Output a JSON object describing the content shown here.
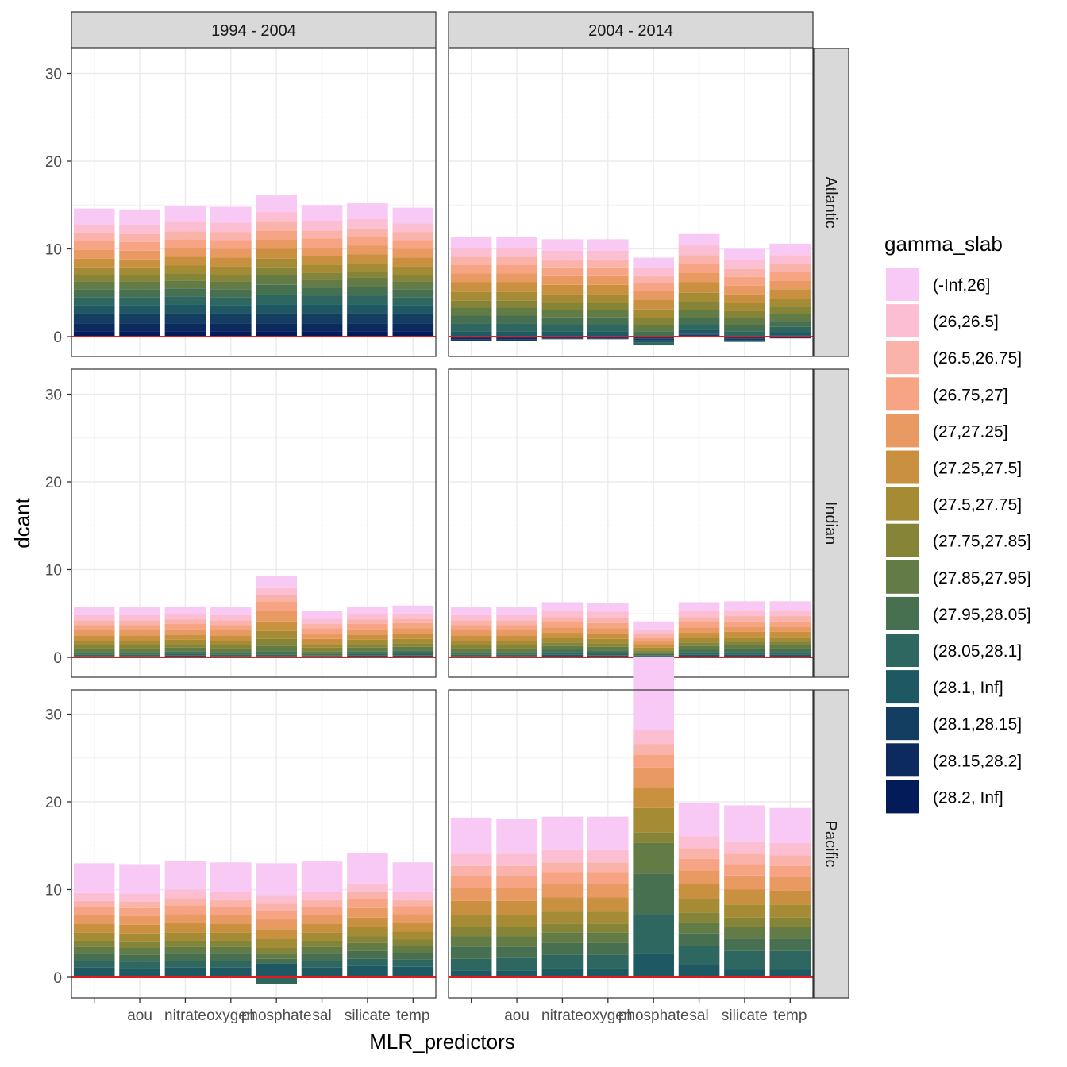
{
  "chart_data": {
    "type": "bar",
    "stacked": true,
    "xlabel": "MLR_predictors",
    "ylabel": "dcant",
    "ylim": [
      -1.5,
      33
    ],
    "yticks": [
      0,
      10,
      20,
      30
    ],
    "categories": [
      "",
      "aou",
      "nitrate",
      "oxygen",
      "phosphate",
      "sal",
      "silicate",
      "temp"
    ],
    "facet_cols": [
      "1994 - 2004",
      "2004 - 2014"
    ],
    "facet_rows": [
      "Atlantic",
      "Indian",
      "Pacific"
    ],
    "reference_line": {
      "y": 0,
      "color": "#e41a1c"
    },
    "grid": true,
    "legend": {
      "title": "gamma_slab",
      "position": "right",
      "labels": [
        "(-Inf,26]",
        "(26,26.5]",
        "(26.5,26.75]",
        "(26.75,27]",
        "(27,27.25]",
        "(27.25,27.5]",
        "(27.5,27.75]",
        "(27.75,27.85]",
        "(27.85,27.95]",
        "(27.95,28.05]",
        "(28.05,28.1]",
        "(28.1, Inf]",
        "(28.1,28.15]",
        "(28.15,28.2]",
        "(28.2, Inf]"
      ],
      "colors": [
        "#F9C9F6",
        "#FBBED3",
        "#FAB3AA",
        "#F6A484",
        "#E99A63",
        "#C9913F",
        "#A58B33",
        "#858437",
        "#637B45",
        "#477050",
        "#2E6660",
        "#1E5863",
        "#133E62",
        "#0C2A5E",
        "#041B5A"
      ]
    },
    "panels": [
      {
        "col": 0,
        "row": 0,
        "bars": [
          [
            1.8,
            1.0,
            0.9,
            1.0,
            1.0,
            1.0,
            0.8,
            0.8,
            0.9,
            0.9,
            0.9,
            0.9,
            1.2,
            0.9,
            0.6
          ],
          [
            1.8,
            1.0,
            0.9,
            1.0,
            1.0,
            0.9,
            0.8,
            0.8,
            0.9,
            0.9,
            0.9,
            0.9,
            1.2,
            0.9,
            0.6
          ],
          [
            1.8,
            1.1,
            0.9,
            1.0,
            1.0,
            1.0,
            0.9,
            0.8,
            0.9,
            0.9,
            0.9,
            1.0,
            1.2,
            0.9,
            0.6
          ],
          [
            1.8,
            1.1,
            0.9,
            1.0,
            1.0,
            1.0,
            0.9,
            0.8,
            0.9,
            0.9,
            0.9,
            0.9,
            1.2,
            0.9,
            0.6
          ],
          [
            1.9,
            1.1,
            1.0,
            1.0,
            1.1,
            1.1,
            1.0,
            0.9,
            1.1,
            1.1,
            1.1,
            1.0,
            1.2,
            0.9,
            0.6
          ],
          [
            1.8,
            1.1,
            0.9,
            1.0,
            1.0,
            1.0,
            0.9,
            0.8,
            0.9,
            0.9,
            1.0,
            1.0,
            1.2,
            0.9,
            0.6
          ],
          [
            1.8,
            1.1,
            0.9,
            1.0,
            1.0,
            1.0,
            0.9,
            0.8,
            1.0,
            1.0,
            1.0,
            1.0,
            1.2,
            0.9,
            0.6
          ],
          [
            1.8,
            1.0,
            0.9,
            1.0,
            1.0,
            1.0,
            0.9,
            0.8,
            0.9,
            0.9,
            0.9,
            0.9,
            1.2,
            0.9,
            0.6
          ]
        ]
      },
      {
        "col": 1,
        "row": 0,
        "bars": [
          [
            1.3,
            1.0,
            0.9,
            1.0,
            1.0,
            1.1,
            1.0,
            0.8,
            0.9,
            0.9,
            0.9,
            0.6,
            -0.2,
            -0.2,
            -0.1
          ],
          [
            1.3,
            1.0,
            0.9,
            1.0,
            1.0,
            1.1,
            1.0,
            0.8,
            0.9,
            0.9,
            0.9,
            0.6,
            -0.2,
            -0.2,
            -0.1
          ],
          [
            1.3,
            1.0,
            0.9,
            1.0,
            1.0,
            1.1,
            1.0,
            0.8,
            0.8,
            0.8,
            0.8,
            0.6,
            -0.1,
            -0.1,
            -0.1
          ],
          [
            1.3,
            1.0,
            0.9,
            1.0,
            1.0,
            1.1,
            1.0,
            0.8,
            0.8,
            0.8,
            0.8,
            0.6,
            -0.1,
            -0.1,
            -0.1
          ],
          [
            1.2,
            0.9,
            0.8,
            0.9,
            1.0,
            1.1,
            1.0,
            0.8,
            0.7,
            0.6,
            -0.3,
            -0.3,
            -0.2,
            -0.1,
            -0.1
          ],
          [
            1.3,
            1.1,
            1.0,
            1.0,
            1.1,
            1.2,
            1.1,
            0.9,
            0.9,
            0.7,
            0.6,
            0.5,
            0.1,
            0.1,
            0.1
          ],
          [
            1.3,
            1.0,
            0.9,
            1.0,
            1.0,
            1.0,
            0.9,
            0.8,
            0.8,
            0.7,
            0.6,
            -0.2,
            -0.2,
            -0.1,
            -0.1
          ],
          [
            1.3,
            1.0,
            0.9,
            1.0,
            1.0,
            1.1,
            0.9,
            0.8,
            0.8,
            0.7,
            0.6,
            0.4,
            0.1,
            -0.1,
            -0.1
          ]
        ]
      },
      {
        "col": 0,
        "row": 1,
        "bars": [
          [
            0.9,
            0.6,
            0.5,
            0.6,
            0.6,
            0.6,
            0.5,
            0.4,
            0.4,
            0.3,
            0.2,
            0.1,
            0.0,
            0.0,
            0.0
          ],
          [
            0.9,
            0.6,
            0.5,
            0.6,
            0.6,
            0.6,
            0.5,
            0.4,
            0.4,
            0.3,
            0.2,
            0.1,
            0.0,
            0.0,
            0.0
          ],
          [
            0.9,
            0.6,
            0.5,
            0.6,
            0.6,
            0.6,
            0.5,
            0.4,
            0.4,
            0.3,
            0.2,
            0.2,
            0.0,
            0.0,
            0.0
          ],
          [
            0.9,
            0.6,
            0.5,
            0.6,
            0.6,
            0.6,
            0.5,
            0.4,
            0.4,
            0.3,
            0.2,
            0.1,
            0.0,
            0.0,
            0.0
          ],
          [
            1.4,
            0.8,
            0.7,
            1.1,
            1.2,
            1.1,
            0.9,
            0.8,
            0.6,
            0.4,
            0.2,
            0.1,
            0.0,
            0.0,
            0.0
          ],
          [
            0.9,
            0.6,
            0.5,
            0.6,
            0.6,
            0.6,
            0.4,
            0.4,
            0.3,
            0.2,
            0.1,
            0.1,
            0.0,
            0.0,
            0.0
          ],
          [
            0.9,
            0.6,
            0.5,
            0.6,
            0.6,
            0.6,
            0.5,
            0.4,
            0.4,
            0.3,
            0.2,
            0.2,
            0.0,
            0.0,
            0.0
          ],
          [
            0.9,
            0.6,
            0.5,
            0.6,
            0.6,
            0.6,
            0.5,
            0.4,
            0.4,
            0.3,
            0.3,
            0.2,
            0.0,
            0.0,
            0.0
          ]
        ]
      },
      {
        "col": 1,
        "row": 1,
        "bars": [
          [
            0.9,
            0.6,
            0.5,
            0.6,
            0.6,
            0.6,
            0.5,
            0.4,
            0.4,
            0.3,
            0.2,
            0.1,
            0.0,
            0.0,
            0.0
          ],
          [
            0.9,
            0.6,
            0.5,
            0.6,
            0.6,
            0.6,
            0.5,
            0.4,
            0.4,
            0.3,
            0.2,
            0.1,
            0.0,
            0.0,
            0.0
          ],
          [
            1.0,
            0.7,
            0.6,
            0.6,
            0.6,
            0.6,
            0.5,
            0.4,
            0.4,
            0.3,
            0.3,
            0.3,
            0.0,
            0.0,
            0.0
          ],
          [
            1.0,
            0.7,
            0.6,
            0.6,
            0.6,
            0.6,
            0.5,
            0.4,
            0.4,
            0.3,
            0.3,
            0.2,
            0.0,
            0.0,
            0.0
          ],
          [
            0.9,
            0.5,
            0.4,
            0.4,
            0.4,
            0.4,
            0.3,
            0.2,
            0.2,
            0.2,
            0.1,
            0.1,
            0.0,
            0.0,
            0.0
          ],
          [
            1.0,
            0.7,
            0.6,
            0.6,
            0.6,
            0.6,
            0.5,
            0.4,
            0.4,
            0.3,
            0.3,
            0.3,
            0.0,
            0.0,
            0.0
          ],
          [
            1.0,
            0.7,
            0.6,
            0.6,
            0.6,
            0.6,
            0.5,
            0.4,
            0.4,
            0.4,
            0.3,
            0.3,
            0.0,
            0.0,
            0.0
          ],
          [
            1.0,
            0.7,
            0.6,
            0.6,
            0.6,
            0.6,
            0.5,
            0.4,
            0.4,
            0.4,
            0.3,
            0.3,
            0.0,
            0.0,
            0.0
          ]
        ]
      },
      {
        "col": 0,
        "row": 2,
        "bars": [
          [
            3.4,
            0.9,
            0.7,
            0.9,
            1.0,
            1.0,
            0.9,
            0.7,
            0.8,
            0.8,
            0.8,
            1.1,
            0.0,
            0.0,
            0.0
          ],
          [
            3.4,
            0.9,
            0.7,
            0.9,
            1.0,
            1.0,
            0.9,
            0.7,
            0.8,
            0.8,
            0.8,
            1.0,
            0.0,
            0.0,
            0.0
          ],
          [
            3.3,
            1.0,
            0.8,
            1.0,
            1.0,
            1.1,
            0.9,
            0.7,
            0.8,
            0.8,
            0.8,
            1.1,
            0.0,
            0.0,
            0.0
          ],
          [
            3.4,
            0.9,
            0.8,
            0.9,
            1.0,
            1.0,
            0.9,
            0.7,
            0.8,
            0.8,
            0.8,
            1.1,
            0.0,
            0.0,
            0.0
          ],
          [
            3.6,
            1.0,
            0.8,
            1.0,
            1.1,
            1.1,
            1.0,
            0.7,
            0.6,
            0.5,
            -0.8,
            1.6,
            0.0,
            0.0,
            0.0
          ],
          [
            3.5,
            0.9,
            0.8,
            0.9,
            1.0,
            1.0,
            0.9,
            0.7,
            0.8,
            0.8,
            0.8,
            1.1,
            0.0,
            0.0,
            0.0
          ],
          [
            3.5,
            1.0,
            0.8,
            1.0,
            1.1,
            1.1,
            1.0,
            0.8,
            0.9,
            0.9,
            0.8,
            1.3,
            0.0,
            0.0,
            0.0
          ],
          [
            3.4,
            0.9,
            0.7,
            0.9,
            1.0,
            1.0,
            0.9,
            0.7,
            0.8,
            0.8,
            0.8,
            1.2,
            0.0,
            0.0,
            0.0
          ]
        ]
      },
      {
        "col": 1,
        "row": 2,
        "bars": [
          [
            4.1,
            1.4,
            1.2,
            1.3,
            1.5,
            1.6,
            1.4,
            1.0,
            1.2,
            1.4,
            1.3,
            0.8,
            0.0,
            0.0,
            0.0
          ],
          [
            4.0,
            1.4,
            1.2,
            1.3,
            1.5,
            1.6,
            1.4,
            1.0,
            1.2,
            1.3,
            1.4,
            0.8,
            0.0,
            0.0,
            0.0
          ],
          [
            3.8,
            1.4,
            1.2,
            1.3,
            1.5,
            1.6,
            1.4,
            1.0,
            1.2,
            1.3,
            1.6,
            1.0,
            0.0,
            0.0,
            0.0
          ],
          [
            3.8,
            1.4,
            1.2,
            1.3,
            1.5,
            1.6,
            1.4,
            1.0,
            1.2,
            1.3,
            1.6,
            1.0,
            0.0,
            0.0,
            0.0
          ],
          [
            8.3,
            1.6,
            1.2,
            1.5,
            2.2,
            2.4,
            2.8,
            1.2,
            3.5,
            4.6,
            4.5,
            2.7,
            0.0,
            0.0,
            0.0
          ],
          [
            3.8,
            1.4,
            1.2,
            1.3,
            1.6,
            1.7,
            1.5,
            1.1,
            1.3,
            1.4,
            2.2,
            1.4,
            0.0,
            0.0,
            0.0
          ],
          [
            4.1,
            1.4,
            1.2,
            1.3,
            1.6,
            1.7,
            1.5,
            1.1,
            1.3,
            1.4,
            2.1,
            0.9,
            0.0,
            0.0,
            0.0
          ],
          [
            4.0,
            1.4,
            1.2,
            1.3,
            1.5,
            1.6,
            1.5,
            1.1,
            1.3,
            1.4,
            2.1,
            0.9,
            0.0,
            0.0,
            0.0
          ]
        ]
      }
    ]
  }
}
